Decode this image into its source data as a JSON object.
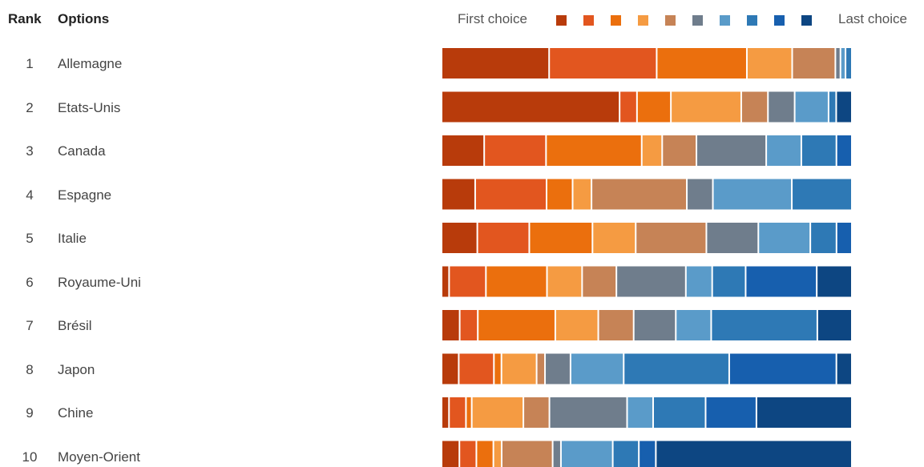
{
  "header": {
    "rank_label": "Rank",
    "options_label": "Options"
  },
  "legend": {
    "first_label": "First choice",
    "last_label": "Last choice"
  },
  "chart_data": {
    "type": "bar",
    "stacked": true,
    "orientation": "horizontal",
    "unit": "percent of respondents per rank position",
    "legend_placement": "top-right",
    "grid": false,
    "series_colors": [
      "#b83b0b",
      "#e2561f",
      "#eb6f0d",
      "#f59b42",
      "#c68356",
      "#6f7d8c",
      "#5a9bc9",
      "#2e79b5",
      "#175fae",
      "#0d4682"
    ],
    "rows": [
      {
        "rank": "1",
        "option": "Allemagne",
        "values": [
          25.4,
          25.4,
          21.3,
          10.7,
          10.2,
          1.2,
          1.2,
          1.5,
          0,
          0
        ]
      },
      {
        "rank": "2",
        "option": "Etats-Unis",
        "values": [
          42.0,
          4.1,
          8.0,
          16.6,
          6.3,
          6.3,
          8.0,
          1.8,
          0,
          3.7
        ]
      },
      {
        "rank": "3",
        "option": "Canada",
        "values": [
          10.2,
          14.8,
          22.9,
          4.9,
          8.2,
          16.7,
          8.4,
          8.4,
          3.7,
          0
        ]
      },
      {
        "rank": "4",
        "option": "Espagne",
        "values": [
          8.0,
          17.0,
          6.2,
          4.5,
          22.7,
          6.2,
          18.8,
          14.3,
          0,
          0
        ]
      },
      {
        "rank": "5",
        "option": "Italie",
        "values": [
          8.6,
          12.5,
          15.2,
          10.4,
          17.0,
          12.5,
          12.5,
          6.3,
          3.7,
          0
        ]
      },
      {
        "rank": "6",
        "option": "Royaume-Uni",
        "values": [
          1.8,
          8.8,
          14.6,
          8.4,
          8.2,
          16.6,
          6.3,
          8.0,
          17.0,
          8.4
        ]
      },
      {
        "rank": "7",
        "option": "Brésil",
        "values": [
          4.3,
          4.3,
          18.4,
          10.2,
          8.4,
          10.0,
          8.4,
          25.2,
          0,
          8.2
        ]
      },
      {
        "rank": "8",
        "option": "Japon",
        "values": [
          4.1,
          8.4,
          1.8,
          8.4,
          2.0,
          6.1,
          12.7,
          25.2,
          25.6,
          3.7
        ]
      },
      {
        "rank": "9",
        "option": "Chine",
        "values": [
          1.8,
          4.1,
          1.4,
          12.5,
          6.3,
          18.8,
          6.3,
          12.7,
          12.3,
          23.1
        ]
      },
      {
        "rank": "10",
        "option": "Moyen-Orient",
        "values": [
          4.3,
          4.1,
          4.1,
          2.0,
          12.3,
          2.0,
          12.5,
          6.3,
          4.1,
          47.3
        ]
      }
    ]
  }
}
